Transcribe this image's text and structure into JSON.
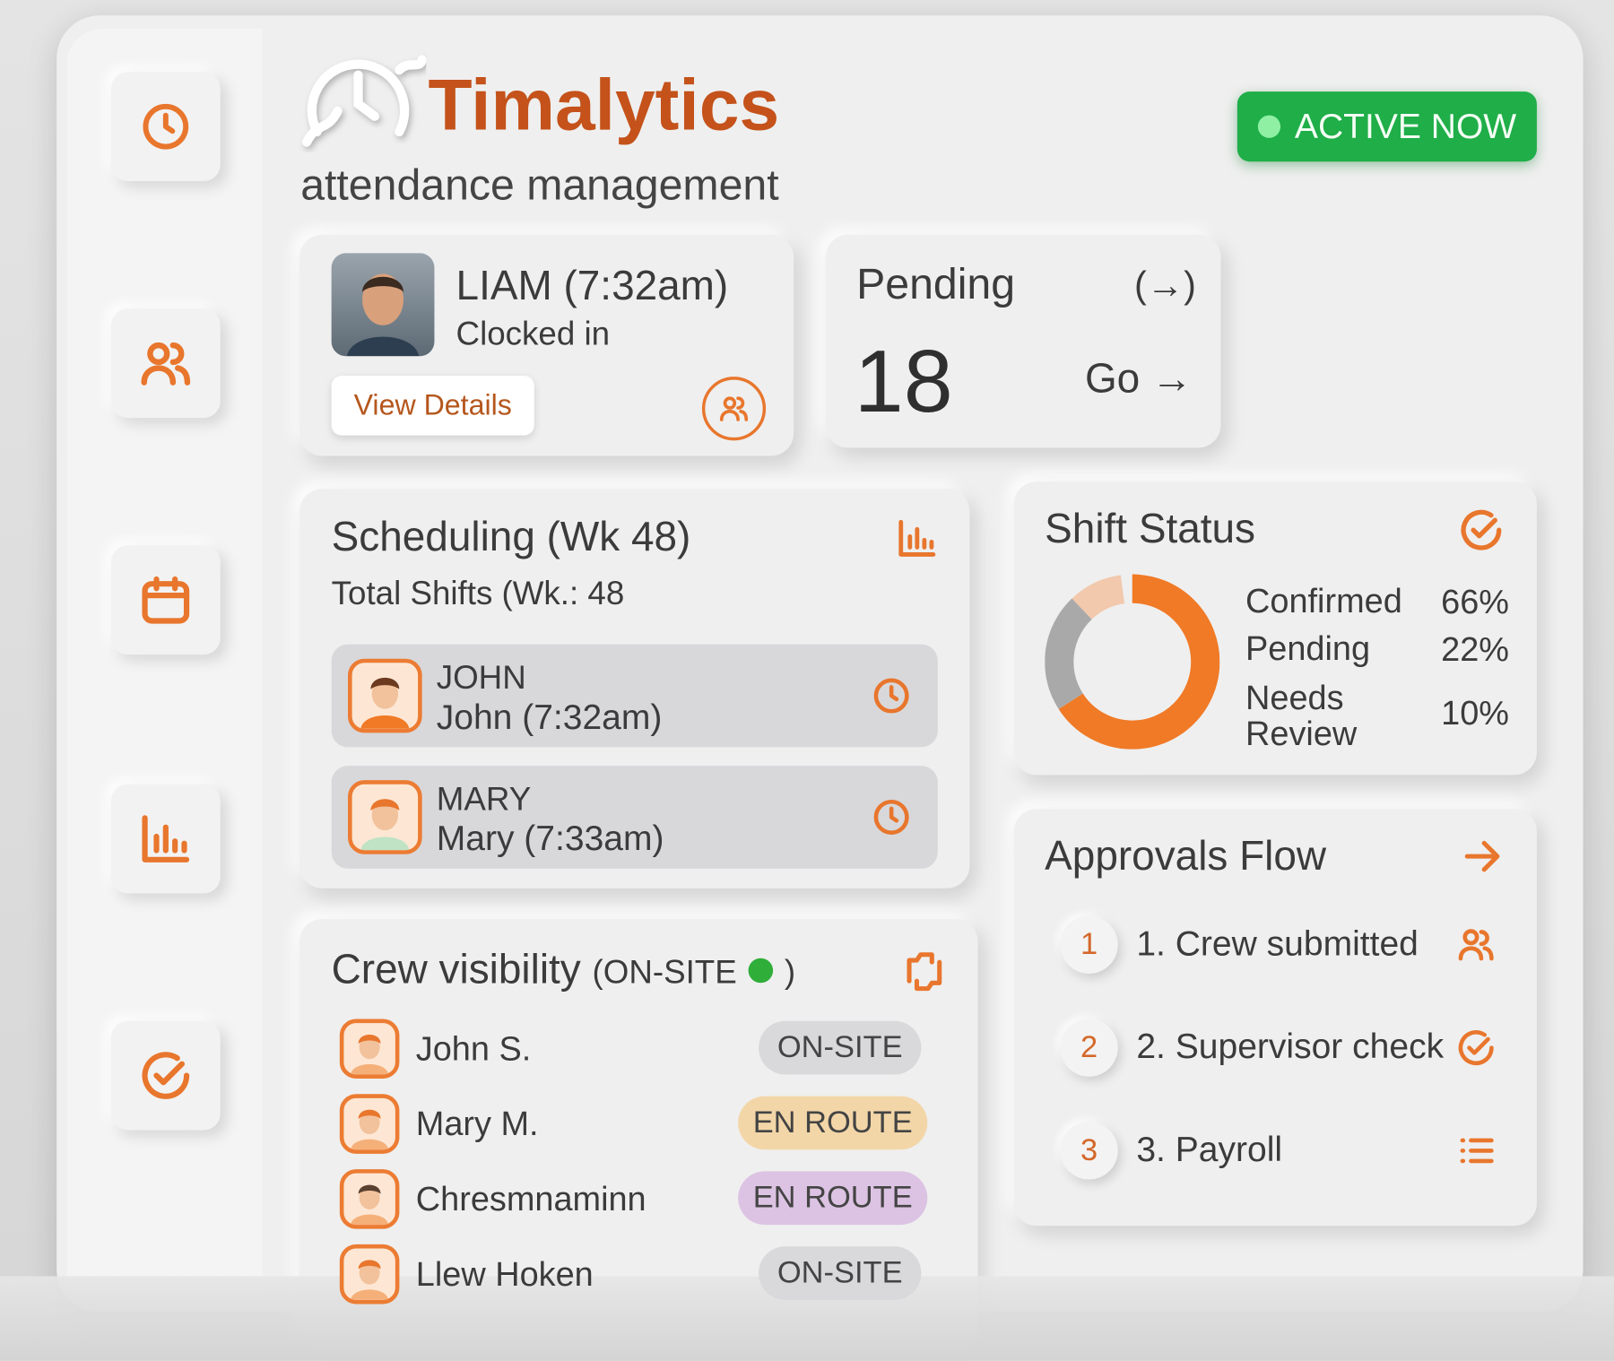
{
  "header": {
    "brand": "Timalytics",
    "subtitle": "attendance management",
    "status": "ACTIVE NOW"
  },
  "clock_in": {
    "name": "LIAM (7:32am)",
    "status": "Clocked in",
    "button": "View Details"
  },
  "pending": {
    "title": "Pending",
    "icon_label": "(→)",
    "count": 18,
    "link": "Go →"
  },
  "scheduling": {
    "title": "Scheduling (Wk 48)",
    "subtitle": "Total Shifts (Wk.: 48",
    "rows": [
      {
        "name": "JOHN",
        "detail": "John (7:32am)"
      },
      {
        "name": "MARY",
        "detail": "Mary (7:33am)"
      }
    ]
  },
  "crew": {
    "title": "Crew visibility",
    "tag_open": "(ON-SITE",
    "tag_close": ")",
    "rows": [
      {
        "name": "John S.",
        "status": "ON-SITE"
      },
      {
        "name": "Mary M.",
        "status": "EN ROUTE"
      },
      {
        "name": "Chresmnaminn",
        "status": "EN ROUTE"
      },
      {
        "name": "Llew Hoken",
        "status": "ON-SITE"
      }
    ]
  },
  "shift_status": {
    "title": "Shift Status",
    "items": [
      {
        "label": "Confirmed",
        "value": 66,
        "value_label": "66%",
        "color": "#f07a26"
      },
      {
        "label": "Pending",
        "value": 22,
        "value_label": "22%",
        "color": "#a9a9a9"
      },
      {
        "label": "Needs Review",
        "value": 10,
        "value_label": "10%",
        "color": "#f2c9ad"
      }
    ]
  },
  "approvals": {
    "title": "Approvals Flow",
    "steps": [
      {
        "number": 1,
        "label": "1. Crew submitted"
      },
      {
        "number": 2,
        "label": "2. Supervisor check"
      },
      {
        "number": 3,
        "label": "3. Payroll"
      }
    ]
  }
}
